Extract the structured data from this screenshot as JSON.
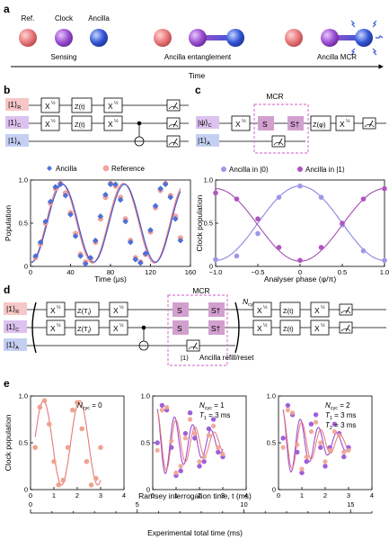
{
  "panel_a": {
    "label": "a",
    "qubits": [
      "Ref.",
      "Clock",
      "Ancilla"
    ],
    "stages": [
      "Sensing",
      "Ancilla entanglement",
      "Ancilla MCR"
    ],
    "axis_label": "Time",
    "colors": {
      "ref": "#e8777a",
      "clock": "#9b4fd0",
      "ancilla": "#3557d6"
    }
  },
  "panel_b": {
    "label": "b",
    "circuit": {
      "kets": [
        "|1⟩",
        "|1⟩",
        "|1⟩"
      ],
      "ket_subs": [
        "R",
        "C",
        "A"
      ],
      "gates": [
        "X",
        "½",
        "Z(t)"
      ]
    },
    "chart_data": {
      "type": "scatter",
      "xlabel": "Time (μs)",
      "ylabel": "Population",
      "xlim": [
        0,
        160
      ],
      "ylim": [
        0,
        1
      ],
      "xticks": [
        "0",
        "40",
        "80",
        "120",
        "160"
      ],
      "yticks": [
        "0",
        "0.5",
        "1.0"
      ],
      "legend": [
        "Ancilla",
        "Reference"
      ],
      "series": [
        {
          "name": "Ancilla",
          "x": [
            5,
            10,
            15,
            20,
            25,
            30,
            35,
            40,
            45,
            50,
            55,
            60,
            65,
            70,
            75,
            80,
            85,
            90,
            95,
            100,
            105,
            110,
            115,
            120,
            125,
            130,
            135,
            140,
            145,
            150
          ],
          "y": [
            0.12,
            0.28,
            0.52,
            0.75,
            0.92,
            0.95,
            0.82,
            0.6,
            0.35,
            0.12,
            0.03,
            0.1,
            0.3,
            0.58,
            0.83,
            0.95,
            0.95,
            0.77,
            0.52,
            0.28,
            0.08,
            0.04,
            0.15,
            0.42,
            0.7,
            0.9,
            0.95,
            0.8,
            0.55,
            0.3
          ]
        },
        {
          "name": "Reference",
          "x": [
            5,
            10,
            15,
            20,
            25,
            30,
            35,
            40,
            45,
            50,
            55,
            60,
            65,
            70,
            75,
            80,
            85,
            90,
            95,
            100,
            105,
            110,
            115,
            120,
            125,
            130,
            135,
            140,
            145,
            150
          ],
          "y": [
            0.1,
            0.26,
            0.5,
            0.73,
            0.9,
            0.96,
            0.85,
            0.62,
            0.38,
            0.14,
            0.05,
            0.09,
            0.28,
            0.55,
            0.8,
            0.96,
            0.93,
            0.8,
            0.55,
            0.3,
            0.1,
            0.05,
            0.14,
            0.4,
            0.68,
            0.88,
            0.96,
            0.82,
            0.58,
            0.33
          ]
        }
      ]
    }
  },
  "panel_c": {
    "label": "c",
    "circuit_title": "MCR",
    "circuit": {
      "kets": [
        "|ψ⟩",
        "|1⟩"
      ],
      "ket_subs": [
        "C",
        "A"
      ],
      "gates": [
        "X",
        "½",
        "S",
        "S†",
        "Z(φ)"
      ]
    },
    "chart_data": {
      "type": "scatter",
      "xlabel": "Analyser phase (φ/π)",
      "ylabel": "Clock population",
      "xlim": [
        -1,
        1
      ],
      "ylim": [
        0,
        1
      ],
      "xticks": [
        "−1.0",
        "−0.5",
        "0",
        "0.5",
        "1.0"
      ],
      "yticks": [
        "0",
        "0.5",
        "1.0"
      ],
      "legend": [
        "Ancilla in |0⟩",
        "Ancilla in |1⟩"
      ],
      "series": [
        {
          "name": "Ancilla in |0⟩",
          "x": [
            -1,
            -0.75,
            -0.5,
            -0.25,
            0,
            0.25,
            0.5,
            0.75,
            1
          ],
          "y": [
            0.08,
            0.12,
            0.38,
            0.8,
            0.93,
            0.8,
            0.48,
            0.18,
            0.07
          ]
        },
        {
          "name": "Ancilla in |1⟩",
          "x": [
            -1,
            -0.75,
            -0.5,
            -0.25,
            0,
            0.25,
            0.5,
            0.75,
            1
          ],
          "y": [
            0.85,
            0.78,
            0.55,
            0.22,
            0.07,
            0.22,
            0.5,
            0.78,
            0.9
          ]
        }
      ]
    }
  },
  "panel_d": {
    "label": "d",
    "circuit_title": "MCR",
    "ncyc": "N",
    "ncyc_sub": "cyc",
    "circuit": {
      "kets": [
        "|1⟩",
        "|1⟩",
        "|1⟩"
      ],
      "ket_subs": [
        "R",
        "C",
        "A"
      ],
      "gates": [
        "X",
        "½",
        "Z(T",
        "i",
        ")",
        "S",
        "S†",
        "Z(t)"
      ]
    },
    "reset_ket": "|1⟩",
    "reset_label": "Ancilla refill/reset"
  },
  "panel_e": {
    "label": "e",
    "xlabel": "Ramsey interrogation time, t (ms)",
    "ylabel": "Clock population",
    "xticks": [
      "0",
      "1",
      "2",
      "3",
      "4"
    ],
    "yticks": [
      "0",
      "0.5",
      "1.0"
    ],
    "chart_data": [
      {
        "type": "line",
        "annotation": [
          "N",
          "cyc",
          " = 0"
        ],
        "series": [
          {
            "x": [
              0.2,
              0.4,
              0.6,
              0.8,
              1.0,
              1.2,
              1.4,
              1.6,
              1.8,
              2.0,
              2.2,
              2.4,
              2.6,
              2.8,
              3.0
            ],
            "y": [
              0.45,
              0.88,
              0.95,
              0.7,
              0.3,
              0.05,
              0.1,
              0.45,
              0.85,
              0.93,
              0.65,
              0.3,
              0.05,
              0.12,
              0.45
            ]
          }
        ]
      },
      {
        "type": "line",
        "annotation": [
          "N",
          "cyc",
          " = 1",
          "T",
          "1",
          " = 3 ms"
        ],
        "series": [
          {
            "x": [
              0.2,
              0.4,
              0.6,
              0.8,
              1.0,
              1.2,
              1.4,
              1.6,
              1.8,
              2.0,
              2.2,
              2.4,
              2.6,
              2.8,
              3.0
            ],
            "y": [
              0.5,
              0.9,
              0.85,
              0.45,
              0.15,
              0.2,
              0.6,
              0.82,
              0.55,
              0.25,
              0.3,
              0.65,
              0.75,
              0.4,
              0.35
            ]
          },
          {
            "x": [
              0.2,
              0.4,
              0.6,
              0.8,
              1.0,
              1.2,
              1.4,
              1.6,
              1.8,
              2.0,
              2.2,
              2.4,
              2.6,
              2.8,
              3.0
            ],
            "y": [
              0.42,
              0.85,
              0.88,
              0.52,
              0.18,
              0.25,
              0.55,
              0.75,
              0.6,
              0.3,
              0.35,
              0.58,
              0.68,
              0.45,
              0.38
            ]
          }
        ]
      },
      {
        "type": "line",
        "annotation": [
          "N",
          "cyc",
          " = 2",
          "T",
          "1",
          " = 3 ms",
          "T",
          "2",
          " = 3 ms"
        ],
        "series": [
          {
            "x": [
              0.2,
              0.4,
              0.6,
              0.8,
              1.0,
              1.2,
              1.4,
              1.6,
              1.8,
              2.0,
              2.2,
              2.4,
              2.6,
              2.8,
              3.0
            ],
            "y": [
              0.55,
              0.9,
              0.8,
              0.4,
              0.18,
              0.3,
              0.7,
              0.8,
              0.45,
              0.25,
              0.45,
              0.7,
              0.6,
              0.35,
              0.45
            ]
          },
          {
            "x": [
              0.2,
              0.4,
              0.6,
              0.8,
              1.0,
              1.2,
              1.4,
              1.6,
              1.8,
              2.0,
              2.2,
              2.4,
              2.6,
              2.8,
              3.0
            ],
            "y": [
              0.45,
              0.85,
              0.82,
              0.48,
              0.22,
              0.35,
              0.62,
              0.72,
              0.5,
              0.3,
              0.42,
              0.62,
              0.58,
              0.4,
              0.42
            ]
          }
        ]
      }
    ],
    "bottom_axis": {
      "label": "Experimental total time (ms)",
      "ticks": [
        "0",
        "5",
        "10",
        "15"
      ],
      "range": [
        0,
        16
      ]
    }
  }
}
